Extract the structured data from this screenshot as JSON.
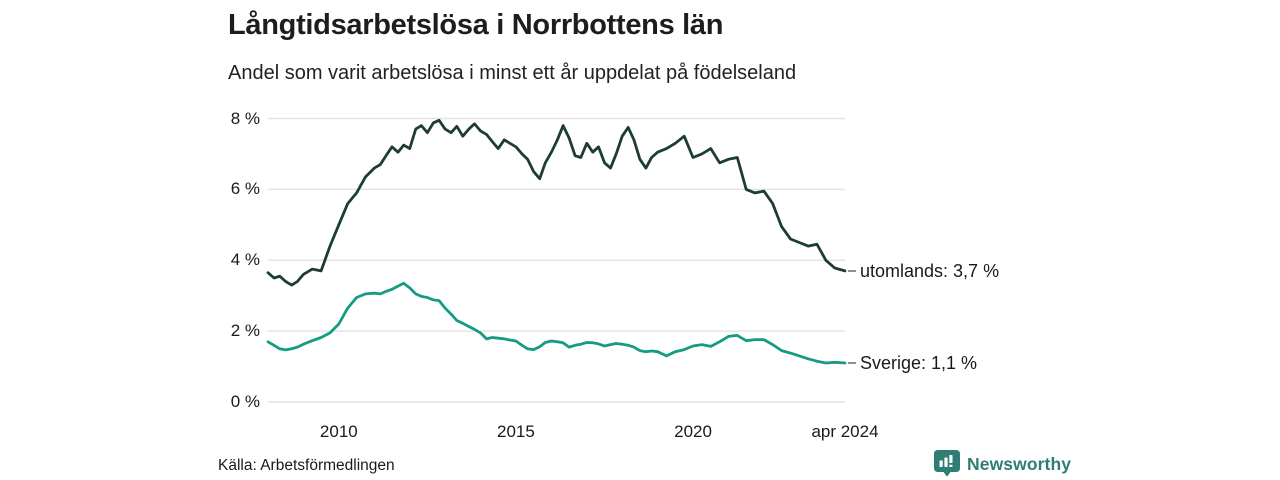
{
  "colors": {
    "background": "#ffffff",
    "grid": "#e4e4e4",
    "text": "#1a1a1a",
    "connector_dash": "#8f8f8f",
    "brand_teal": "#2f7e76",
    "series_utomlands": "#1e3c37",
    "series_sverige": "#149b82"
  },
  "footer": {
    "source": "Källa: Arbetsförmedlingen",
    "brand": "Newsworthy"
  },
  "chart_data": {
    "type": "line",
    "title": "Långtidsarbetslösa i Norrbottens län",
    "subtitle": "Andel som varit arbetslösa i minst ett år uppdelat på födelseland",
    "xlabel": "",
    "ylabel": "",
    "x_unit": "decimal_year",
    "xlim": [
      2008.0,
      2024.29
    ],
    "ylim": [
      0,
      8
    ],
    "grid": "horizontal",
    "legend_position": "right-end-labels",
    "y_ticks": [
      {
        "value": 0,
        "label": "0 %"
      },
      {
        "value": 2,
        "label": "2 %"
      },
      {
        "value": 4,
        "label": "4 %"
      },
      {
        "value": 6,
        "label": "6 %"
      },
      {
        "value": 8,
        "label": "8 %"
      }
    ],
    "x_ticks": [
      {
        "value": 2010,
        "label": "2010"
      },
      {
        "value": 2015,
        "label": "2015"
      },
      {
        "value": 2020,
        "label": "2020"
      },
      {
        "value": 2024.29,
        "label": "apr 2024"
      }
    ],
    "x": [
      2008.0,
      2008.17,
      2008.33,
      2008.5,
      2008.67,
      2008.83,
      2009.0,
      2009.25,
      2009.5,
      2009.75,
      2010.0,
      2010.25,
      2010.5,
      2010.75,
      2011.0,
      2011.17,
      2011.33,
      2011.5,
      2011.67,
      2011.83,
      2012.0,
      2012.17,
      2012.33,
      2012.5,
      2012.67,
      2012.83,
      2013.0,
      2013.17,
      2013.33,
      2013.5,
      2013.67,
      2013.83,
      2014.0,
      2014.17,
      2014.33,
      2014.5,
      2014.67,
      2014.83,
      2015.0,
      2015.17,
      2015.33,
      2015.5,
      2015.67,
      2015.83,
      2016.0,
      2016.17,
      2016.33,
      2016.5,
      2016.67,
      2016.83,
      2017.0,
      2017.17,
      2017.33,
      2017.5,
      2017.67,
      2017.83,
      2018.0,
      2018.17,
      2018.33,
      2018.5,
      2018.67,
      2018.83,
      2019.0,
      2019.25,
      2019.5,
      2019.75,
      2020.0,
      2020.25,
      2020.5,
      2020.75,
      2021.0,
      2021.25,
      2021.5,
      2021.75,
      2022.0,
      2022.25,
      2022.5,
      2022.75,
      2023.0,
      2023.25,
      2023.5,
      2023.75,
      2024.0,
      2024.29
    ],
    "series": [
      {
        "name": "utomlands",
        "label": "utomlands: 3,7 %",
        "last_value": "3,7 %",
        "color": "#1e3c37",
        "values": [
          3.65,
          3.5,
          3.55,
          3.4,
          3.3,
          3.4,
          3.6,
          3.75,
          3.7,
          4.4,
          5.0,
          5.6,
          5.9,
          6.35,
          6.6,
          6.7,
          6.95,
          7.2,
          7.05,
          7.25,
          7.15,
          7.7,
          7.8,
          7.6,
          7.88,
          7.95,
          7.7,
          7.6,
          7.78,
          7.5,
          7.7,
          7.85,
          7.65,
          7.55,
          7.35,
          7.15,
          7.4,
          7.3,
          7.2,
          7.0,
          6.85,
          6.5,
          6.3,
          6.75,
          7.05,
          7.4,
          7.8,
          7.45,
          6.95,
          6.9,
          7.3,
          7.05,
          7.2,
          6.75,
          6.6,
          7.0,
          7.5,
          7.75,
          7.4,
          6.85,
          6.6,
          6.9,
          7.05,
          7.15,
          7.3,
          7.5,
          6.9,
          7.0,
          7.15,
          6.75,
          6.85,
          6.9,
          6.0,
          5.9,
          5.95,
          5.6,
          4.95,
          4.6,
          4.5,
          4.4,
          4.45,
          4.0,
          3.78,
          3.7
        ]
      },
      {
        "name": "sverige",
        "label": "Sverige: 1,1 %",
        "last_value": "1,1 %",
        "color": "#149b82",
        "values": [
          1.7,
          1.6,
          1.5,
          1.47,
          1.5,
          1.55,
          1.63,
          1.73,
          1.82,
          1.95,
          2.2,
          2.65,
          2.95,
          3.05,
          3.07,
          3.05,
          3.12,
          3.18,
          3.27,
          3.35,
          3.22,
          3.05,
          2.98,
          2.95,
          2.88,
          2.86,
          2.65,
          2.48,
          2.3,
          2.22,
          2.13,
          2.05,
          1.95,
          1.78,
          1.82,
          1.8,
          1.78,
          1.75,
          1.72,
          1.6,
          1.5,
          1.48,
          1.56,
          1.68,
          1.72,
          1.7,
          1.67,
          1.55,
          1.6,
          1.63,
          1.68,
          1.67,
          1.64,
          1.58,
          1.62,
          1.65,
          1.63,
          1.6,
          1.55,
          1.45,
          1.42,
          1.44,
          1.42,
          1.3,
          1.42,
          1.48,
          1.58,
          1.62,
          1.57,
          1.7,
          1.85,
          1.88,
          1.73,
          1.76,
          1.76,
          1.62,
          1.45,
          1.38,
          1.3,
          1.22,
          1.15,
          1.1,
          1.12,
          1.1
        ]
      }
    ]
  }
}
